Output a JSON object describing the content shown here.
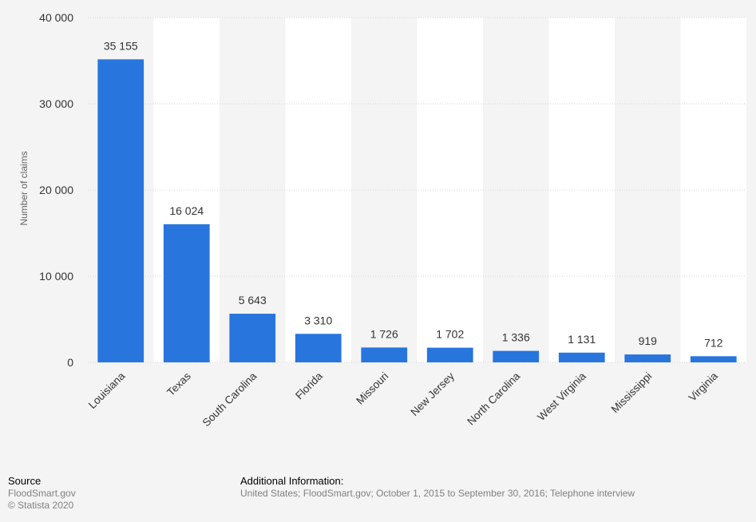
{
  "chart_data": {
    "type": "bar",
    "categories": [
      "Louisiana",
      "Texas",
      "South Carolina",
      "Florida",
      "Missouri",
      "New Jersey",
      "North Carolina",
      "West Virginia",
      "Mississippi",
      "Virginia"
    ],
    "values": [
      35155,
      16024,
      5643,
      3310,
      1726,
      1702,
      1336,
      1131,
      919,
      712
    ],
    "value_labels": [
      "35 155",
      "16 024",
      "5 643",
      "3 310",
      "1 726",
      "1 702",
      "1 336",
      "1 131",
      "919",
      "712"
    ],
    "ylabel": "Number of claims",
    "ylim": [
      0,
      40000
    ],
    "yticks": [
      0,
      10000,
      20000,
      30000,
      40000
    ],
    "ytick_labels": [
      "0",
      "10 000",
      "20 000",
      "30 000",
      "40 000"
    ],
    "bar_color": "#2876dd",
    "band_color": "#ffffff",
    "grid": true
  },
  "footer": {
    "source_heading": "Source",
    "source_lines": [
      "FloodSmart.gov",
      "© Statista 2020"
    ],
    "additional_heading": "Additional Information:",
    "additional_text": "United States; FloodSmart.gov; October 1, 2015 to September 30, 2016; Telephone interview"
  }
}
